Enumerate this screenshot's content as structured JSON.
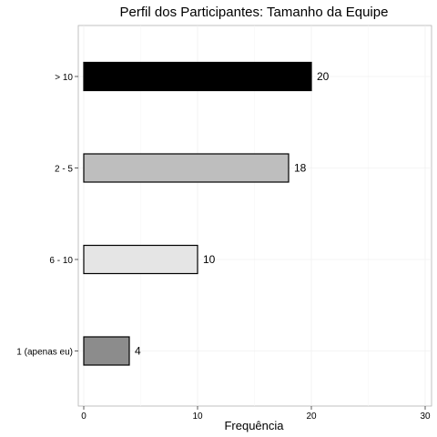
{
  "chart_data": {
    "type": "bar",
    "orientation": "horizontal",
    "title": "Perfil dos Participantes: Tamanho da Equipe",
    "xlabel": "Frequência",
    "ylabel": "",
    "xlim": [
      0,
      30
    ],
    "xticks": [
      0,
      10,
      20,
      30
    ],
    "grid": true,
    "categories": [
      "> 10",
      "2 - 5",
      "6 - 10",
      "1 (apenas eu)"
    ],
    "values": [
      20,
      18,
      10,
      4
    ],
    "colors": [
      "#000000",
      "#bebebe",
      "#e5e5e5",
      "#8c8c8c"
    ],
    "data_labels": [
      "20",
      "18",
      "10",
      "4"
    ]
  }
}
